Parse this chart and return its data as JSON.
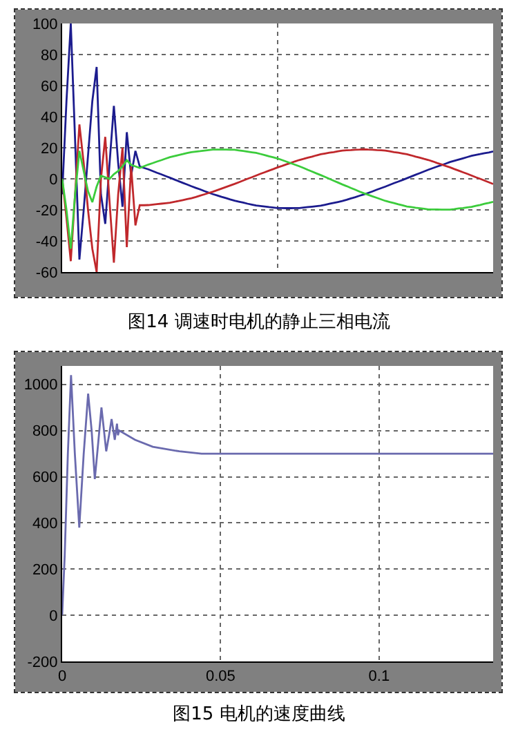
{
  "chart_data": [
    {
      "type": "line",
      "title": "图14 调速时电机的静止三相电流",
      "categories": [
        null,
        null,
        null,
        null,
        null,
        null,
        null,
        null,
        null,
        null,
        null,
        null,
        null,
        null,
        null,
        null,
        null,
        null,
        null,
        null,
        null,
        null,
        null,
        null,
        null,
        null,
        null,
        null,
        null,
        null,
        null,
        null,
        null,
        null,
        null,
        null,
        null,
        null,
        null,
        null,
        null,
        null,
        null,
        null,
        null,
        null,
        null,
        null,
        null,
        null,
        null,
        null,
        null,
        null,
        null,
        null,
        null,
        null,
        null,
        null,
        null,
        null,
        null,
        null,
        null,
        null,
        null,
        null,
        null,
        null,
        null,
        null,
        null,
        null,
        null,
        null,
        null,
        null,
        null,
        null,
        null,
        null,
        null,
        null,
        null,
        null,
        null,
        null,
        null,
        null,
        null,
        null,
        null,
        null,
        null,
        null,
        null,
        null,
        null,
        null,
        null
      ],
      "ylim": [
        -60,
        100
      ],
      "yticks": [
        -60,
        -40,
        -20,
        0,
        20,
        40,
        60,
        80,
        100
      ],
      "tick_labels": "y",
      "grid": true,
      "line_style": "solid",
      "marker": "none",
      "series": [
        {
          "color": "#1c1c8e",
          "values": [
            -10,
            50,
            100,
            25,
            -52,
            -20,
            15,
            50,
            72,
            -10,
            -29,
            10,
            47,
            10,
            -18,
            30,
            2,
            18,
            8,
            7.0,
            6.1,
            5.0,
            3.9,
            2.9,
            1.8,
            0.7,
            -0.4,
            -1.5,
            -2.6,
            -3.7,
            -4.8,
            -5.8,
            -6.8,
            -7.9,
            -8.9,
            -9.9,
            -10.7,
            -11.6,
            -12.4,
            -13.3,
            -14.1,
            -14.7,
            -15.3,
            -16.0,
            -16.6,
            -17.2,
            -17.5,
            -17.8,
            -18.2,
            -18.5,
            -18.8,
            -18.8,
            -18.9,
            -18.9,
            -18.8,
            -18.8,
            -18.5,
            -18.2,
            -17.9,
            -17.6,
            -17.3,
            -16.7,
            -16.1,
            -15.5,
            -14.9,
            -14.3,
            -13.5,
            -12.6,
            -11.8,
            -10.9,
            -10.1,
            -9.1,
            -8.1,
            -7.0,
            -6.0,
            -5.0,
            -3.9,
            -2.8,
            -1.8,
            -0.7,
            0.4,
            1.5,
            2.6,
            3.7,
            4.8,
            5.9,
            6.9,
            7.9,
            8.8,
            9.8,
            10.8,
            11.6,
            12.4,
            13.2,
            14.0,
            14.8,
            15.4,
            15.9,
            16.5,
            17.0,
            17.6
          ]
        },
        {
          "color": "#c0282c",
          "values": [
            0,
            -25,
            -53,
            -10,
            35,
            10,
            -20,
            -45,
            -60,
            0,
            27,
            -15,
            -54,
            -10,
            20,
            -44,
            8,
            -30,
            -17,
            -17.0,
            -16.9,
            -16.6,
            -16.3,
            -16.0,
            -15.7,
            -15.4,
            -14.8,
            -14.3,
            -13.7,
            -13.1,
            -12.5,
            -11.7,
            -10.8,
            -10.0,
            -9.1,
            -8.3,
            -7.3,
            -6.3,
            -5.3,
            -4.3,
            -3.3,
            -2.2,
            -1.1,
            0,
            1.0,
            2.1,
            3.2,
            4.2,
            5.3,
            6.3,
            7.4,
            8.3,
            9.3,
            10.2,
            11.2,
            12.1,
            12.8,
            13.6,
            14.3,
            15.1,
            15.8,
            16.3,
            16.8,
            17.2,
            17.7,
            18.2,
            18.4,
            18.5,
            18.7,
            18.8,
            19,
            18.8,
            18.7,
            18.5,
            18.4,
            18.2,
            17.7,
            17.2,
            16.8,
            16.3,
            15.8,
            15.1,
            14.3,
            13.6,
            12.8,
            12.1,
            11.2,
            10.2,
            9.3,
            8.3,
            7.4,
            6.3,
            5.3,
            4.2,
            3.2,
            2.1,
            1.0,
            0,
            -1.1,
            -2.2,
            -3.3
          ]
        },
        {
          "color": "#3ccc3c",
          "values": [
            0,
            -20,
            -45,
            -10,
            18,
            5,
            -8,
            -15,
            -5,
            2,
            1,
            0,
            3,
            5,
            8,
            12,
            9,
            8,
            7,
            8.1,
            9.2,
            10.1,
            11.1,
            12.0,
            13.0,
            13.9,
            14.6,
            15.3,
            15.9,
            16.6,
            17.2,
            17.5,
            17.8,
            18.2,
            18.5,
            18.8,
            18.8,
            18.8,
            18.8,
            18.7,
            18.7,
            18.3,
            17.9,
            17.5,
            17.1,
            16.7,
            16.0,
            15.3,
            14.5,
            13.8,
            13.1,
            12.1,
            11.1,
            10.1,
            9.1,
            8.1,
            7.0,
            5.8,
            4.7,
            3.5,
            2.4,
            1.2,
            0,
            -1.2,
            -2.4,
            -3.6,
            -4.7,
            -5.9,
            -7.0,
            -8.2,
            -9.3,
            -10.3,
            -11.3,
            -12.2,
            -13.2,
            -14.2,
            -14.9,
            -15.6,
            -16.4,
            -17.1,
            -17.8,
            -18.2,
            -18.6,
            -18.9,
            -19.3,
            -19.7,
            -19.7,
            -19.7,
            -19.8,
            -19.8,
            -19.8,
            -19.5,
            -19.1,
            -18.8,
            -18.4,
            -18.1,
            -17.4,
            -16.8,
            -16.1,
            -15.5,
            -14.8
          ]
        }
      ]
    },
    {
      "type": "line",
      "title": "图15 电机的速度曲线",
      "xlim": [
        0,
        0.136
      ],
      "xticks": [
        0,
        0.05,
        {
          "value": 0.1,
          "label": "0.1"
        }
      ],
      "ylim": [
        -200,
        1080
      ],
      "yticks": [
        -200,
        0,
        200,
        400,
        600,
        800,
        1000
      ],
      "grid": true,
      "line_style": "solid",
      "marker": "none",
      "series": [
        {
          "color": "#6a6aae",
          "x": [
            0,
            0.0008,
            0.0018,
            0.0028,
            0.004,
            0.0054,
            0.0068,
            0.0082,
            0.0093,
            0.0103,
            0.0114,
            0.0124,
            0.0132,
            0.0139,
            0.0148,
            0.0156,
            0.0166,
            0.0173,
            0.0176,
            0.018,
            0.023,
            0.0286,
            0.037,
            0.044,
            0.136
          ],
          "values": [
            0,
            260,
            700,
            1040,
            700,
            380,
            700,
            960,
            800,
            590,
            750,
            900,
            800,
            710,
            780,
            850,
            760,
            830,
            780,
            800,
            760,
            730,
            710,
            700,
            700
          ]
        }
      ]
    }
  ]
}
